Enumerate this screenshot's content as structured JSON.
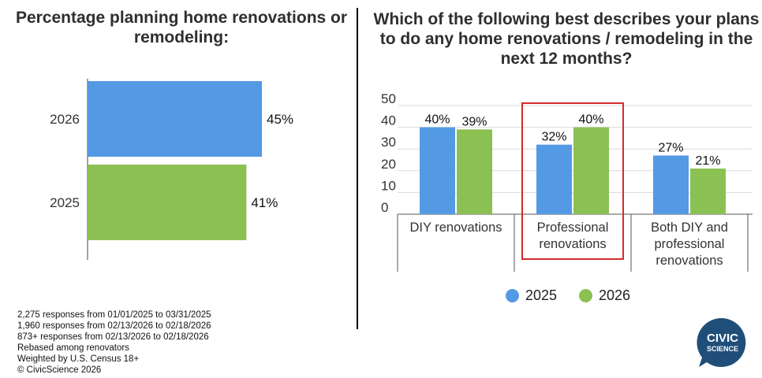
{
  "left_title": "Percentage planning home renovations or remodeling:",
  "right_title": "Which of the following best describes your plans to do any home renovations / remodeling in the next 12 months?",
  "colors": {
    "y2025": "#5499e4",
    "y2026": "#8bc053",
    "highlight": "#d62a2a"
  },
  "chart_data": [
    {
      "type": "bar",
      "orientation": "horizontal",
      "title": "Percentage planning home renovations or remodeling:",
      "categories": [
        "2026",
        "2025"
      ],
      "values": [
        45,
        41
      ],
      "value_labels": [
        "45%",
        "41%"
      ],
      "xlim": [
        0,
        100
      ]
    },
    {
      "type": "bar",
      "title": "Which of the following best describes your plans to do any home renovations / remodeling in the next 12 months?",
      "categories": [
        "DIY renovations",
        "Professional renovations",
        "Both DIY and professional renovations"
      ],
      "category_lines": [
        [
          "DIY renovations"
        ],
        [
          "Professional",
          "renovations"
        ],
        [
          "Both DIY and",
          "professional",
          "renovations"
        ]
      ],
      "series": [
        {
          "name": "2025",
          "values": [
            40,
            32,
            27
          ],
          "labels": [
            "40%",
            "32%",
            "27%"
          ]
        },
        {
          "name": "2026",
          "values": [
            39,
            40,
            21
          ],
          "labels": [
            "39%",
            "40%",
            "21%"
          ]
        }
      ],
      "ylim": [
        0,
        50
      ],
      "yticks": [
        "0",
        "10",
        "20",
        "30",
        "40",
        "50"
      ],
      "grid": true,
      "legend": "bottom",
      "highlighted_category": "Professional renovations"
    }
  ],
  "notes": [
    "2,275 responses from 01/01/2025 to 03/31/2025",
    "1,960 responses from 02/13/2026 to 02/18/2026",
    "873+ responses from 02/13/2026 to 02/18/2026",
    "Rebased among renovators",
    "Weighted by U.S. Census 18+",
    "© CivicScience 2026"
  ],
  "logo": {
    "line1": "CIVIC",
    "line2": "SCIENCE",
    "color": "#1f4e79"
  }
}
